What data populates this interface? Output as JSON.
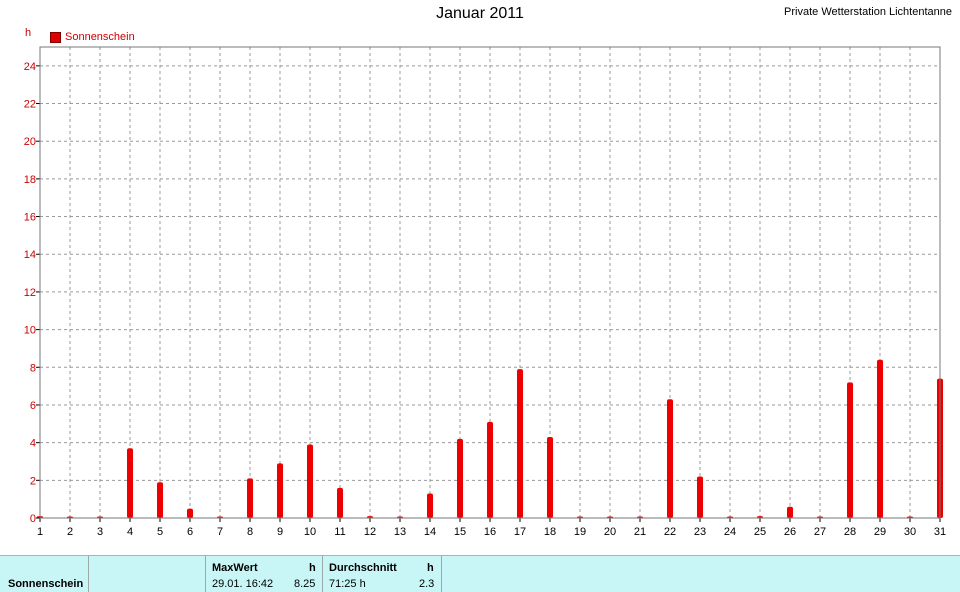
{
  "header": {
    "title": "Januar 2011",
    "station": "Private Wetterstation Lichtentanne",
    "unit": "h",
    "legend_label": "Sonnenschein"
  },
  "colors": {
    "series": "#ee0000",
    "axis_text": "#cc0000",
    "grid": "#999999",
    "footer_bg": "#c8f6f6"
  },
  "chart_data": {
    "type": "bar",
    "categories": [
      "1",
      "2",
      "3",
      "4",
      "5",
      "6",
      "7",
      "8",
      "9",
      "10",
      "11",
      "12",
      "13",
      "14",
      "15",
      "16",
      "17",
      "18",
      "19",
      "20",
      "21",
      "22",
      "23",
      "24",
      "25",
      "26",
      "27",
      "28",
      "29",
      "30",
      "31"
    ],
    "series": [
      {
        "name": "Sonnenschein",
        "values": [
          0.1,
          0,
          0,
          3.7,
          1.9,
          0.5,
          0,
          2.1,
          2.9,
          3.9,
          1.6,
          0.1,
          0,
          1.3,
          4.2,
          5.1,
          7.9,
          4.3,
          0,
          0,
          0,
          6.3,
          2.2,
          0,
          0.1,
          0.6,
          0,
          7.2,
          8.4,
          0,
          7.4
        ]
      }
    ],
    "ylabel": "h",
    "ylim": [
      0,
      25
    ],
    "yticks": [
      0,
      2,
      4,
      6,
      8,
      10,
      12,
      14,
      16,
      18,
      20,
      22,
      24
    ],
    "grid": true,
    "legend": "top-left"
  },
  "footer": {
    "row_label": "Sonnenschein",
    "max_header": "MaxWert",
    "max_unit": "h",
    "max_datetime": "29.01.  16:42",
    "max_value": "8.25",
    "avg_header": "Durchschnitt",
    "avg_unit": "h",
    "avg_total": "71:25 h",
    "avg_value": "2.3"
  }
}
